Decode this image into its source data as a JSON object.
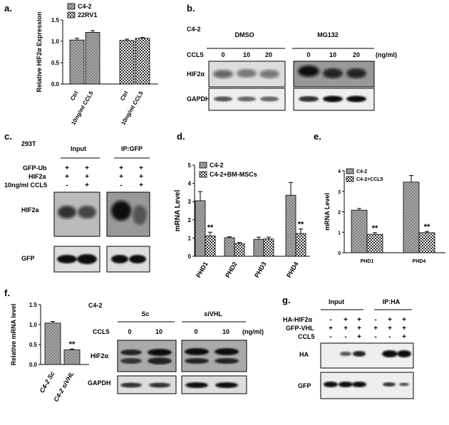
{
  "panels": {
    "a": {
      "letter": "a."
    },
    "b": {
      "letter": "b.",
      "cell": "C4-2",
      "treatments": [
        "DMSO",
        "MG132"
      ],
      "ccl5_label": "CCL5",
      "doses": [
        "0",
        "10",
        "20"
      ],
      "unit": "(ng/ml)",
      "rows": [
        "HIF2α",
        "GAPDH"
      ]
    },
    "c": {
      "letter": "c.",
      "cell": "293T",
      "groups": [
        "Input",
        "IP:GFP"
      ],
      "row_labels": [
        "GFP-Ub",
        "HIF2a",
        "10ng/ml CCL5"
      ],
      "signs": [
        [
          "+",
          "+",
          "+",
          "+"
        ],
        [
          "+",
          "+",
          "+",
          "+"
        ],
        [
          "-",
          "+",
          "-",
          "+"
        ]
      ],
      "blots": [
        "HIF2a",
        "GFP"
      ]
    },
    "d": {
      "letter": "d."
    },
    "e": {
      "letter": "e."
    },
    "f": {
      "letter": "f.",
      "cell": "C4-2",
      "groups": [
        "Sc",
        "siVHL"
      ],
      "ccl5_label": "CCL5",
      "doses": [
        "0",
        "10",
        "0",
        "10"
      ],
      "unit": "(ng/ml)",
      "rows": [
        "HIF2α",
        "GAPDH"
      ]
    },
    "g": {
      "letter": "g.",
      "groups": [
        "Input",
        "IP:HA"
      ],
      "row_labels": [
        "HA-HIF2α",
        "GFP-VHL",
        "CCL5"
      ],
      "signs": [
        [
          "-",
          "+",
          "+",
          "-",
          "+",
          "+"
        ],
        [
          "+",
          "+",
          "+",
          "+",
          "+",
          "+"
        ],
        [
          "-",
          "-",
          "+",
          "-",
          "-",
          "+"
        ]
      ],
      "blots": [
        "HA",
        "GFP"
      ]
    }
  },
  "chart_data": [
    {
      "panel": "a",
      "type": "bar",
      "ylabel": "Relative HIF2α Expression",
      "ylim": [
        0,
        1.5
      ],
      "yticks": [
        "0.0",
        "0.5",
        "1.0",
        "1.5"
      ],
      "categories": [
        "Ctrl",
        "10ng/ml CCL5",
        "Ctrl",
        "10ng/ml CCL5"
      ],
      "series": [
        {
          "name": "C4-2",
          "values": [
            1.03,
            1.21,
            null,
            null
          ],
          "errors": [
            0.04,
            0.04,
            null,
            null
          ]
        },
        {
          "name": "22RV1",
          "values": [
            null,
            null,
            1.02,
            1.07
          ],
          "errors": [
            null,
            null,
            0.03,
            0.02
          ]
        }
      ],
      "legend": "top-left"
    },
    {
      "panel": "d",
      "type": "bar",
      "ylabel": "mRNA Level",
      "ylim": [
        0,
        5
      ],
      "yticks": [
        "0",
        "1",
        "2",
        "3",
        "4",
        "5"
      ],
      "categories": [
        "PHD1",
        "PHD2",
        "PHD3",
        "PHD4"
      ],
      "series": [
        {
          "name": "C4-2",
          "values": [
            3.05,
            1.02,
            0.93,
            3.35
          ],
          "errors": [
            0.5,
            0.05,
            0.12,
            0.7
          ]
        },
        {
          "name": "C4-2+BM-MSCs",
          "values": [
            1.12,
            0.7,
            0.95,
            1.25
          ],
          "errors": [
            0.2,
            0.06,
            0.1,
            0.25
          ]
        }
      ],
      "annotations": [
        "**",
        "**"
      ],
      "legend": "top-left"
    },
    {
      "panel": "e",
      "type": "bar",
      "ylabel": "mRNA Level",
      "ylim": [
        0,
        4
      ],
      "yticks": [
        "0",
        "1",
        "2",
        "3",
        "4"
      ],
      "categories": [
        "PHD1",
        "PHD4"
      ],
      "series": [
        {
          "name": "C4-2",
          "values": [
            2.08,
            3.45
          ],
          "errors": [
            0.08,
            0.32
          ]
        },
        {
          "name": "C4-2+CCL5",
          "values": [
            0.9,
            0.98
          ],
          "errors": [
            0.08,
            0.06
          ]
        }
      ],
      "annotations": [
        "**",
        "**"
      ],
      "legend": "top-left"
    },
    {
      "panel": "f",
      "type": "bar",
      "ylabel": "Relative mRNA level",
      "ylim": [
        0,
        1.5
      ],
      "yticks": [
        "0.0",
        "0.5",
        "1.0",
        "1.5"
      ],
      "categories": [
        "C4-2 Sc",
        "C4-2 siVHL"
      ],
      "series": [
        {
          "values": [
            1.04,
            0.37
          ],
          "errors": [
            0.04,
            0.02
          ]
        }
      ],
      "annotations": [
        "**"
      ]
    }
  ]
}
